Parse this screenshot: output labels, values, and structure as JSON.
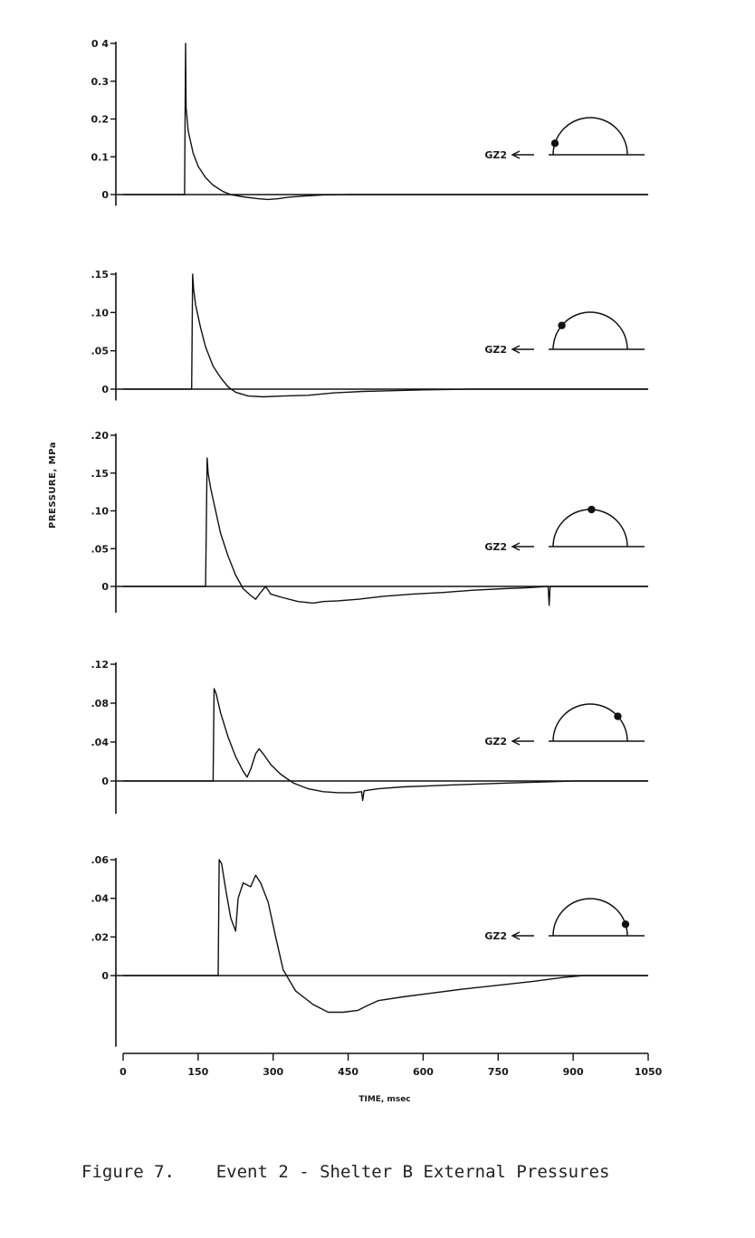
{
  "caption": "Figure 7.    Event 2 - Shelter B External Pressures",
  "chart_data": {
    "type": "line",
    "ylabel": "PRESSURE, MPa",
    "xlabel": "TIME, msec",
    "xlim": [
      0,
      1050
    ],
    "x_ticks": [
      "0",
      "150",
      "300",
      "450",
      "600",
      "750",
      "900",
      "1050"
    ],
    "x_tick_values": [
      0,
      150,
      300,
      450,
      600,
      750,
      900,
      1050
    ],
    "direction_label": "GZ2",
    "gauge_location_icon": "half-circle-shelter-with-gauge-dot",
    "panels": [
      {
        "ylim": [
          -0.02,
          0.4
        ],
        "y_tick_values": [
          0,
          0.1,
          0.2,
          0.3,
          0.4
        ],
        "y_ticks": [
          "0",
          "0.1",
          "0.2",
          "0.3",
          "0 4"
        ],
        "gauge_angle_deg": 162,
        "points": [
          [
            0,
            0
          ],
          [
            123,
            0
          ],
          [
            125,
            0.4
          ],
          [
            126,
            0.23
          ],
          [
            130,
            0.17
          ],
          [
            140,
            0.11
          ],
          [
            150,
            0.075
          ],
          [
            165,
            0.045
          ],
          [
            180,
            0.025
          ],
          [
            200,
            0.008
          ],
          [
            215,
            0.0
          ],
          [
            240,
            -0.006
          ],
          [
            270,
            -0.011
          ],
          [
            290,
            -0.013
          ],
          [
            310,
            -0.011
          ],
          [
            330,
            -0.007
          ],
          [
            360,
            -0.004
          ],
          [
            400,
            -0.001
          ],
          [
            450,
            0.0
          ],
          [
            1050,
            0.0
          ]
        ]
      },
      {
        "ylim": [
          -0.01,
          0.15
        ],
        "y_tick_values": [
          0,
          0.05,
          0.1,
          0.15
        ],
        "y_ticks": [
          "0",
          ".05",
          ".10",
          ".15"
        ],
        "gauge_angle_deg": 140,
        "points": [
          [
            0,
            0
          ],
          [
            137,
            0
          ],
          [
            139,
            0.15
          ],
          [
            141,
            0.13
          ],
          [
            145,
            0.11
          ],
          [
            155,
            0.08
          ],
          [
            165,
            0.055
          ],
          [
            180,
            0.03
          ],
          [
            195,
            0.015
          ],
          [
            210,
            0.003
          ],
          [
            225,
            -0.004
          ],
          [
            250,
            -0.009
          ],
          [
            280,
            -0.01
          ],
          [
            320,
            -0.009
          ],
          [
            370,
            -0.008
          ],
          [
            420,
            -0.005
          ],
          [
            480,
            -0.003
          ],
          [
            540,
            -0.002
          ],
          [
            600,
            -0.001
          ],
          [
            700,
            0.0
          ],
          [
            1050,
            0.0
          ]
        ]
      },
      {
        "ylim": [
          -0.03,
          0.2
        ],
        "y_tick_values": [
          0,
          0.05,
          0.1,
          0.15,
          0.2
        ],
        "y_ticks": [
          "0",
          ".05",
          ".10",
          ".15",
          ".20"
        ],
        "gauge_angle_deg": 88,
        "points": [
          [
            0,
            0
          ],
          [
            165,
            0
          ],
          [
            168,
            0.17
          ],
          [
            170,
            0.15
          ],
          [
            175,
            0.13
          ],
          [
            185,
            0.1
          ],
          [
            195,
            0.07
          ],
          [
            210,
            0.04
          ],
          [
            225,
            0.015
          ],
          [
            240,
            -0.003
          ],
          [
            255,
            -0.012
          ],
          [
            265,
            -0.017
          ],
          [
            275,
            -0.008
          ],
          [
            285,
            0.0
          ],
          [
            295,
            -0.01
          ],
          [
            320,
            -0.015
          ],
          [
            350,
            -0.02
          ],
          [
            380,
            -0.022
          ],
          [
            400,
            -0.02
          ],
          [
            430,
            -0.019
          ],
          [
            470,
            -0.017
          ],
          [
            520,
            -0.013
          ],
          [
            580,
            -0.01
          ],
          [
            640,
            -0.008
          ],
          [
            700,
            -0.005
          ],
          [
            760,
            -0.003
          ],
          [
            800,
            -0.002
          ],
          [
            850,
            0.0
          ],
          [
            852,
            -0.025
          ],
          [
            854,
            0.0
          ],
          [
            1050,
            0.0
          ]
        ]
      },
      {
        "ylim": [
          -0.03,
          0.12
        ],
        "y_tick_values": [
          0,
          0.04,
          0.08,
          0.12
        ],
        "y_ticks": [
          "0",
          ".04",
          ".08",
          ".12"
        ],
        "gauge_angle_deg": 42,
        "points": [
          [
            0,
            0
          ],
          [
            180,
            0
          ],
          [
            182,
            0.095
          ],
          [
            186,
            0.09
          ],
          [
            195,
            0.07
          ],
          [
            210,
            0.045
          ],
          [
            225,
            0.025
          ],
          [
            240,
            0.01
          ],
          [
            248,
            0.004
          ],
          [
            255,
            0.012
          ],
          [
            265,
            0.028
          ],
          [
            272,
            0.033
          ],
          [
            280,
            0.028
          ],
          [
            295,
            0.017
          ],
          [
            315,
            0.007
          ],
          [
            340,
            -0.002
          ],
          [
            370,
            -0.008
          ],
          [
            400,
            -0.011
          ],
          [
            430,
            -0.012
          ],
          [
            460,
            -0.012
          ],
          [
            477,
            -0.011
          ],
          [
            479,
            -0.02
          ],
          [
            482,
            -0.01
          ],
          [
            510,
            -0.008
          ],
          [
            560,
            -0.006
          ],
          [
            610,
            -0.005
          ],
          [
            660,
            -0.004
          ],
          [
            720,
            -0.003
          ],
          [
            780,
            -0.002
          ],
          [
            840,
            -0.001
          ],
          [
            900,
            0.0
          ],
          [
            1050,
            0.0
          ]
        ]
      },
      {
        "ylim": [
          -0.035,
          0.06
        ],
        "y_tick_values": [
          0,
          0.02,
          0.04,
          0.06
        ],
        "y_ticks": [
          "0",
          ".02",
          ".04",
          ".06"
        ],
        "gauge_angle_deg": 18,
        "points": [
          [
            0,
            0
          ],
          [
            190,
            0
          ],
          [
            192,
            0.06
          ],
          [
            197,
            0.058
          ],
          [
            205,
            0.045
          ],
          [
            215,
            0.03
          ],
          [
            225,
            0.023
          ],
          [
            230,
            0.04
          ],
          [
            240,
            0.048
          ],
          [
            255,
            0.046
          ],
          [
            265,
            0.052
          ],
          [
            275,
            0.048
          ],
          [
            290,
            0.038
          ],
          [
            305,
            0.02
          ],
          [
            320,
            0.003
          ],
          [
            345,
            -0.008
          ],
          [
            380,
            -0.015
          ],
          [
            410,
            -0.019
          ],
          [
            440,
            -0.019
          ],
          [
            470,
            -0.018
          ],
          [
            485,
            -0.016
          ],
          [
            510,
            -0.013
          ],
          [
            560,
            -0.011
          ],
          [
            620,
            -0.009
          ],
          [
            680,
            -0.007
          ],
          [
            750,
            -0.005
          ],
          [
            820,
            -0.003
          ],
          [
            880,
            -0.001
          ],
          [
            920,
            0.0
          ],
          [
            1050,
            0.0
          ]
        ]
      }
    ]
  }
}
